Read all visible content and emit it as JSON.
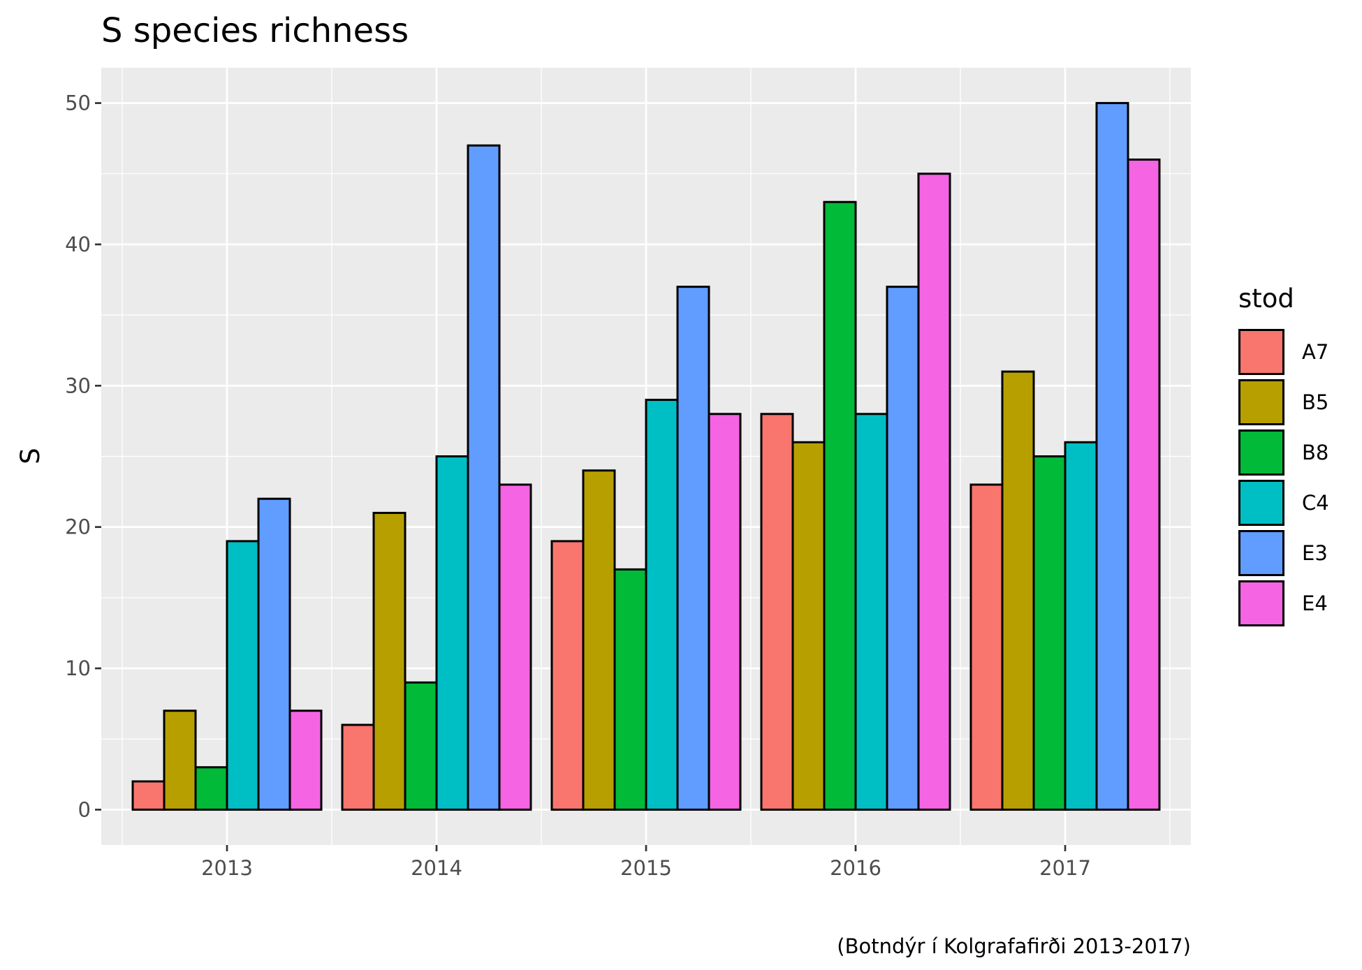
{
  "chart_data": {
    "type": "bar",
    "title": "S species richness",
    "xlabel": "",
    "ylabel": "S",
    "caption": "(Botndýr í Kolgrafafirði 2013-2017)",
    "categories": [
      "2013",
      "2014",
      "2015",
      "2016",
      "2017"
    ],
    "yticks": [
      0,
      10,
      20,
      30,
      40,
      50
    ],
    "ylim": [
      -2.5,
      52.5
    ],
    "grid": true,
    "legend": {
      "title": "stod",
      "position": "right"
    },
    "series": [
      {
        "name": "A7",
        "color": "#F8766D",
        "values": [
          2,
          6,
          19,
          28,
          23
        ]
      },
      {
        "name": "B5",
        "color": "#B79F00",
        "values": [
          7,
          21,
          24,
          26,
          31
        ]
      },
      {
        "name": "B8",
        "color": "#00BA38",
        "values": [
          3,
          9,
          17,
          43,
          25
        ]
      },
      {
        "name": "C4",
        "color": "#00BFC4",
        "values": [
          19,
          25,
          29,
          28,
          26
        ]
      },
      {
        "name": "E3",
        "color": "#619CFF",
        "values": [
          22,
          47,
          37,
          37,
          50
        ]
      },
      {
        "name": "E4",
        "color": "#F564E3",
        "values": [
          7,
          23,
          28,
          45,
          46
        ]
      }
    ]
  }
}
